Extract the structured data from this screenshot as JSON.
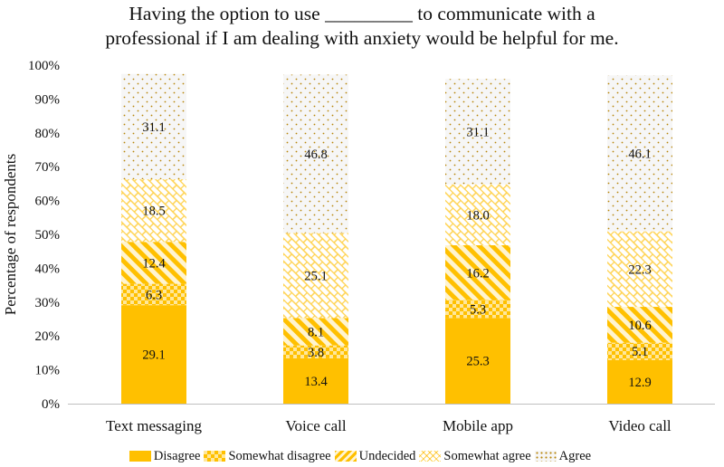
{
  "chart_data": {
    "type": "bar",
    "stacked": true,
    "title_line1": "Having the option to use _________ to communicate with a",
    "title_line2": "professional if I am dealing with anxiety would be helpful for me.",
    "xlabel": "",
    "ylabel": "Percentage of respondents",
    "ylim": [
      0,
      100
    ],
    "yticks": [
      "0%",
      "10%",
      "20%",
      "30%",
      "40%",
      "50%",
      "60%",
      "70%",
      "80%",
      "90%",
      "100%"
    ],
    "categories": [
      "Text messaging",
      "Voice call",
      "Mobile app",
      "Video call"
    ],
    "series": [
      {
        "name": "Disagree",
        "values": [
          29.1,
          13.4,
          25.3,
          12.9
        ],
        "labels": [
          "29.1",
          "13.4",
          "25.3",
          "12.9"
        ],
        "color": "#FFC000",
        "pattern": "solid"
      },
      {
        "name": "Somewhat disagree",
        "values": [
          6.3,
          3.8,
          5.3,
          5.1
        ],
        "labels": [
          "6.3",
          "3.8",
          "5.3",
          "5.1"
        ],
        "color": "#FFC000",
        "pattern": "checker"
      },
      {
        "name": "Undecided",
        "values": [
          12.4,
          8.1,
          16.2,
          10.6
        ],
        "labels": [
          "12.4",
          "8.1",
          "16.2",
          "10.6"
        ],
        "color": "#FFC000",
        "pattern": "wide-diagonal"
      },
      {
        "name": "Somewhat agree",
        "values": [
          18.5,
          25.1,
          18.0,
          22.3
        ],
        "labels": [
          "18.5",
          "25.1",
          "18.0",
          "22.3"
        ],
        "color": "#FFC000",
        "pattern": "brick"
      },
      {
        "name": "Agree",
        "values": [
          31.1,
          46.8,
          31.1,
          46.1
        ],
        "labels": [
          "31.1",
          "46.8",
          "31.1",
          "46.1"
        ],
        "color": "#B8860B",
        "pattern": "dots"
      }
    ],
    "legend_position": "bottom",
    "grid": false
  }
}
